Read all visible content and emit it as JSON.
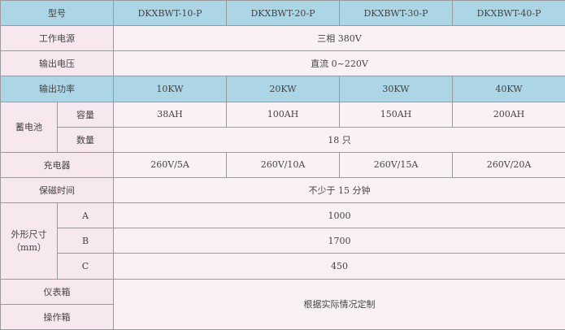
{
  "header": {
    "label": "型号",
    "models": [
      "DKXBWT-10-P",
      "DKXBWT-20-P",
      "DKXBWT-30-P",
      "DKXBWT-40-P"
    ]
  },
  "power_supply": {
    "label": "工作电源",
    "value": "三相 380V"
  },
  "output_voltage": {
    "label": "输出电压",
    "value": "直流 0~220V"
  },
  "output_power": {
    "label": "输出功率",
    "values": [
      "10KW",
      "20KW",
      "30KW",
      "40KW"
    ]
  },
  "battery": {
    "label": "蓄电池",
    "capacity_label": "容量",
    "capacity": [
      "38AH",
      "100AH",
      "150AH",
      "200AH"
    ],
    "quantity_label": "数量",
    "quantity": "18 只"
  },
  "charger": {
    "label": "充电器",
    "values": [
      "260V/5A",
      "260V/10A",
      "260V/15A",
      "260V/20A"
    ]
  },
  "hold_time": {
    "label": "保磁时间",
    "value": "不少于 15 分钟"
  },
  "dimensions": {
    "label": "外形尺寸",
    "unit": "（mm）",
    "rows": [
      {
        "name": "A",
        "value": "1000"
      },
      {
        "name": "B",
        "value": "1700"
      },
      {
        "name": "C",
        "value": "450"
      }
    ]
  },
  "meter_box": {
    "label": "仪表箱"
  },
  "control_box": {
    "label": "操作箱"
  },
  "box_value": "根据实际情况定制",
  "colors": {
    "header": "#acd6e6",
    "body": "#faf1f5",
    "border": "#9a9a9a"
  }
}
